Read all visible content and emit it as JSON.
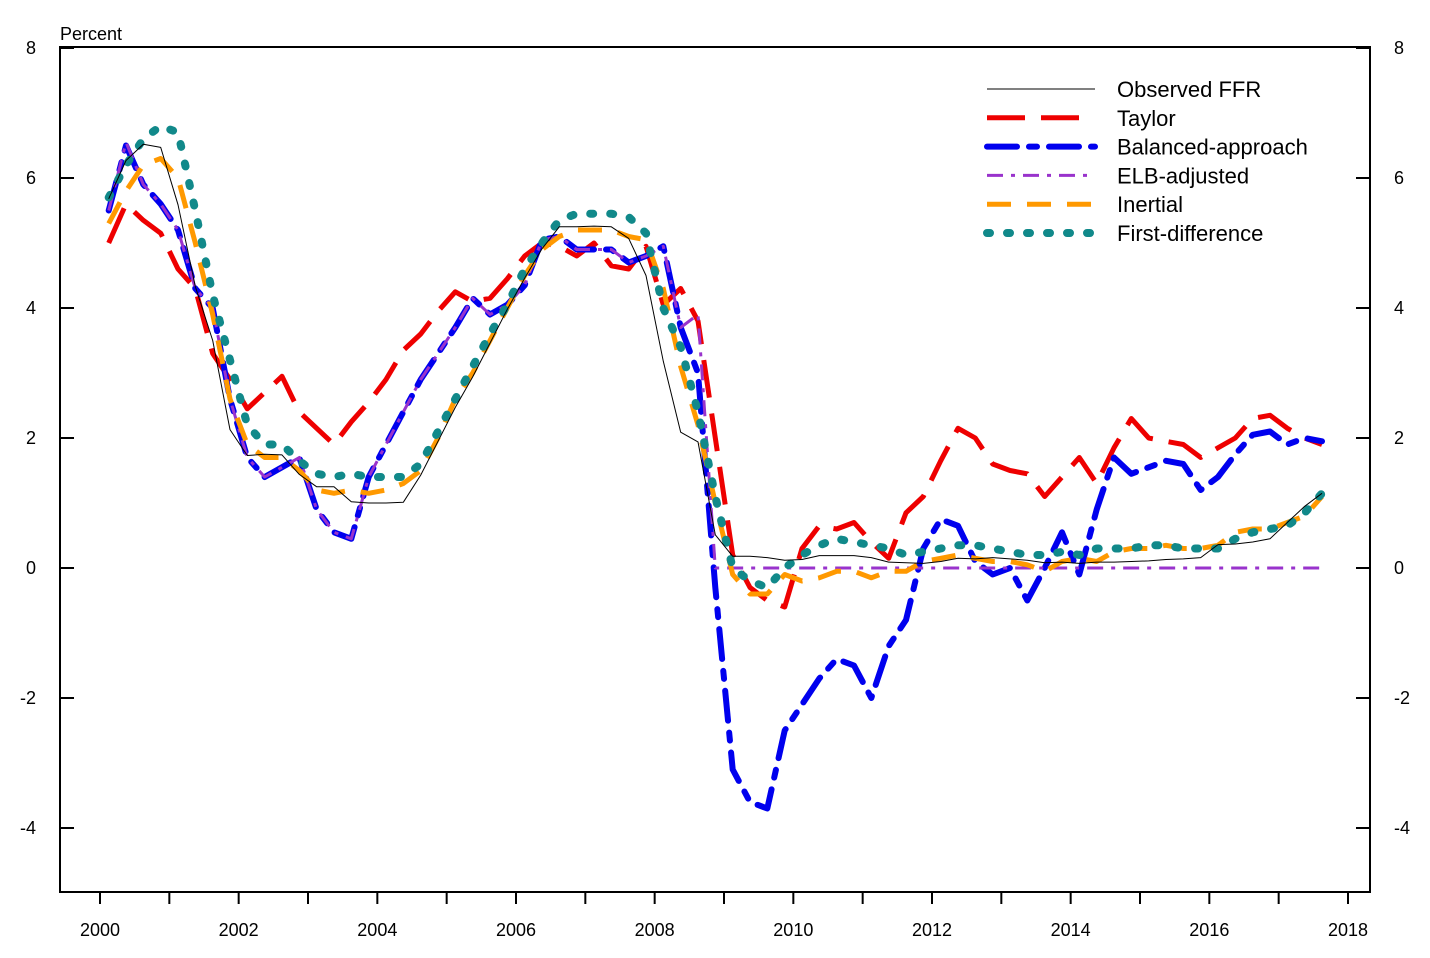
{
  "chart_data": {
    "type": "line",
    "title": "",
    "ylabel": "Percent",
    "xlabel": "",
    "xlim": [
      2000,
      2018
    ],
    "ylim": [
      -5,
      8
    ],
    "x_ticks": [
      2000,
      2002,
      2004,
      2006,
      2008,
      2010,
      2012,
      2014,
      2016,
      2018
    ],
    "y_ticks": [
      -4,
      -2,
      0,
      2,
      4,
      6,
      8
    ],
    "grid": false,
    "legend_position": "top-right",
    "x_start": 2000.125,
    "x_step": 0.25,
    "series": [
      {
        "name": "Observed FFR",
        "color": "#000000",
        "style": "solid",
        "values": [
          5.68,
          6.27,
          6.52,
          6.47,
          5.59,
          4.33,
          3.5,
          2.13,
          1.73,
          1.75,
          1.74,
          1.44,
          1.25,
          1.25,
          1.02,
          1.0,
          1.0,
          1.01,
          1.43,
          1.95,
          2.47,
          2.94,
          3.46,
          3.98,
          4.46,
          4.91,
          5.25,
          5.25,
          5.26,
          5.25,
          5.07,
          4.5,
          3.18,
          2.09,
          1.94,
          0.51,
          0.18,
          0.18,
          0.16,
          0.12,
          0.13,
          0.19,
          0.19,
          0.19,
          0.16,
          0.09,
          0.08,
          0.07,
          0.1,
          0.15,
          0.14,
          0.16,
          0.14,
          0.12,
          0.08,
          0.09,
          0.07,
          0.09,
          0.09,
          0.1,
          0.11,
          0.13,
          0.14,
          0.16,
          0.36,
          0.37,
          0.4,
          0.45,
          0.7,
          0.95,
          1.15
        ]
      },
      {
        "name": "Taylor",
        "color": "#ee0000",
        "style": "long-dash",
        "values": [
          5.0,
          5.6,
          5.35,
          5.15,
          4.6,
          4.3,
          3.3,
          2.9,
          2.45,
          2.7,
          2.95,
          2.4,
          2.15,
          1.9,
          2.25,
          2.55,
          2.9,
          3.35,
          3.6,
          3.95,
          4.25,
          4.1,
          4.15,
          4.45,
          4.8,
          5.0,
          4.95,
          4.8,
          5.0,
          4.65,
          4.6,
          4.95,
          4.05,
          4.3,
          3.8,
          2.0,
          0.2,
          -0.3,
          -0.5,
          -0.6,
          0.3,
          0.65,
          0.6,
          0.7,
          0.4,
          0.15,
          0.85,
          1.1,
          1.65,
          2.15,
          2.0,
          1.6,
          1.5,
          1.45,
          1.1,
          1.4,
          1.7,
          1.3,
          1.85,
          2.3,
          2.0,
          1.95,
          1.9,
          1.7,
          1.85,
          2.0,
          2.3,
          2.35,
          2.15,
          2.0,
          1.9
        ]
      },
      {
        "name": "Balanced-approach",
        "color": "#0000ee",
        "style": "dash-dot",
        "values": [
          5.5,
          6.5,
          5.9,
          5.6,
          5.2,
          4.3,
          4.0,
          2.6,
          1.7,
          1.4,
          1.55,
          1.7,
          0.9,
          0.55,
          0.45,
          1.4,
          1.9,
          2.4,
          2.9,
          3.3,
          3.7,
          4.15,
          3.9,
          4.05,
          4.35,
          5.05,
          5.1,
          4.9,
          4.9,
          4.9,
          4.7,
          4.8,
          4.95,
          3.7,
          3.0,
          -0.3,
          -3.1,
          -3.6,
          -3.7,
          -2.5,
          -2.1,
          -1.7,
          -1.4,
          -1.5,
          -2.0,
          -1.2,
          -0.8,
          0.3,
          0.75,
          0.65,
          0.1,
          -0.1,
          0.0,
          -0.5,
          0.0,
          0.55,
          -0.1,
          0.9,
          1.7,
          1.45,
          1.55,
          1.65,
          1.6,
          1.2,
          1.4,
          1.75,
          2.05,
          2.1,
          1.9,
          2.0,
          1.95
        ]
      },
      {
        "name": "ELB-adjusted",
        "color": "#9933cc",
        "style": "dash-dot-thin",
        "values": [
          5.5,
          6.55,
          5.9,
          5.6,
          5.2,
          4.3,
          4.0,
          2.6,
          1.7,
          1.4,
          1.55,
          1.7,
          0.9,
          0.55,
          0.45,
          1.4,
          1.9,
          2.4,
          2.9,
          3.3,
          3.7,
          4.15,
          3.9,
          4.05,
          4.35,
          5.05,
          5.1,
          4.9,
          4.9,
          4.9,
          4.7,
          4.8,
          4.95,
          3.7,
          3.9,
          0.0,
          0,
          0,
          0,
          0,
          0,
          0,
          0,
          0,
          0,
          0,
          0,
          0,
          0,
          0,
          0,
          0,
          0,
          0,
          0,
          0,
          0,
          0,
          0,
          0,
          0,
          0,
          0,
          0,
          0,
          0,
          0,
          0,
          0,
          0,
          0
        ]
      },
      {
        "name": "Inertial",
        "color": "#ff9900",
        "style": "dash",
        "values": [
          5.3,
          5.8,
          6.2,
          6.3,
          6.0,
          5.0,
          3.9,
          2.6,
          1.9,
          1.7,
          1.7,
          1.5,
          1.2,
          1.15,
          1.2,
          1.15,
          1.2,
          1.3,
          1.5,
          2.0,
          2.6,
          3.0,
          3.5,
          4.0,
          4.5,
          4.9,
          5.1,
          5.2,
          5.2,
          5.2,
          5.1,
          5.05,
          4.3,
          3.1,
          2.2,
          1.0,
          -0.1,
          -0.4,
          -0.4,
          -0.1,
          -0.2,
          -0.15,
          -0.05,
          -0.05,
          -0.15,
          -0.05,
          -0.05,
          0.1,
          0.15,
          0.2,
          0.15,
          0.1,
          0.1,
          0.05,
          -0.05,
          0.1,
          0.15,
          0.1,
          0.25,
          0.3,
          0.3,
          0.35,
          0.3,
          0.3,
          0.35,
          0.55,
          0.6,
          0.6,
          0.7,
          0.8,
          1.1
        ]
      },
      {
        "name": "First-difference",
        "color": "#11898a",
        "style": "dot",
        "values": [
          5.7,
          6.2,
          6.6,
          6.8,
          6.7,
          5.5,
          4.2,
          3.2,
          2.2,
          1.9,
          1.9,
          1.65,
          1.45,
          1.4,
          1.45,
          1.4,
          1.4,
          1.4,
          1.6,
          2.1,
          2.6,
          3.1,
          3.6,
          4.05,
          4.6,
          5.0,
          5.35,
          5.45,
          5.45,
          5.45,
          5.4,
          5.15,
          4.0,
          3.4,
          2.4,
          1.1,
          0.0,
          -0.2,
          -0.3,
          0.0,
          0.2,
          0.35,
          0.45,
          0.4,
          0.35,
          0.3,
          0.2,
          0.25,
          0.3,
          0.35,
          0.35,
          0.3,
          0.25,
          0.2,
          0.2,
          0.25,
          0.2,
          0.3,
          0.3,
          0.3,
          0.35,
          0.35,
          0.3,
          0.3,
          0.3,
          0.45,
          0.55,
          0.6,
          0.65,
          0.85,
          1.15
        ]
      }
    ]
  }
}
